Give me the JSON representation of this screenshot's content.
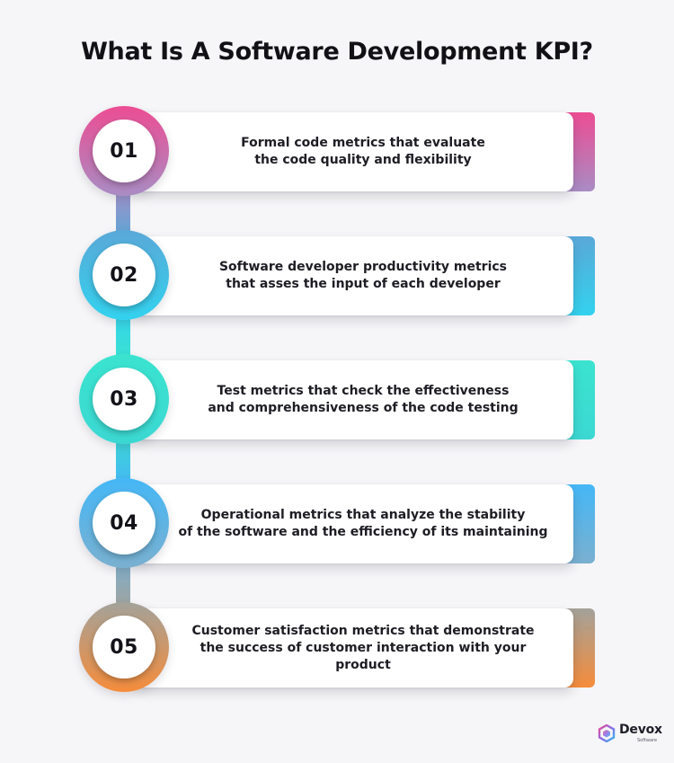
{
  "title": "What Is A Software Development KPI?",
  "steps": [
    {
      "number": "01",
      "line1": "Formal code metrics that evaluate",
      "line2": "the code quality and flexibility",
      "color_top": "#ec4d93",
      "color_bottom": "#a98cc4"
    },
    {
      "number": "02",
      "line1": "Software developer productivity metrics",
      "line2": "that asses the input of each developer",
      "color_top": "#5aa8d8",
      "color_bottom": "#33d2ee"
    },
    {
      "number": "03",
      "line1": "Test metrics that check the effectiveness",
      "line2": "and comprehensiveness of the code testing",
      "color_top": "#3be3cf",
      "color_bottom": "#3bd8d2"
    },
    {
      "number": "04",
      "line1": "Operational metrics that analyze the stability",
      "line2": "of the software and the efficiency of its maintaining",
      "color_top": "#45b7f6",
      "color_bottom": "#7ab0d0"
    },
    {
      "number": "05",
      "line1": "Customer satisfaction metrics that demonstrate",
      "line2": "the success of customer interaction with your product",
      "color_top": "#a3a29a",
      "color_bottom": "#f58c3b"
    }
  ],
  "logo": {
    "name": "Devox",
    "sub": "Software",
    "icon": "devox-hexagon-logo-icon",
    "colors": [
      "#ec4d93",
      "#8b6be8",
      "#33b9f0"
    ]
  }
}
